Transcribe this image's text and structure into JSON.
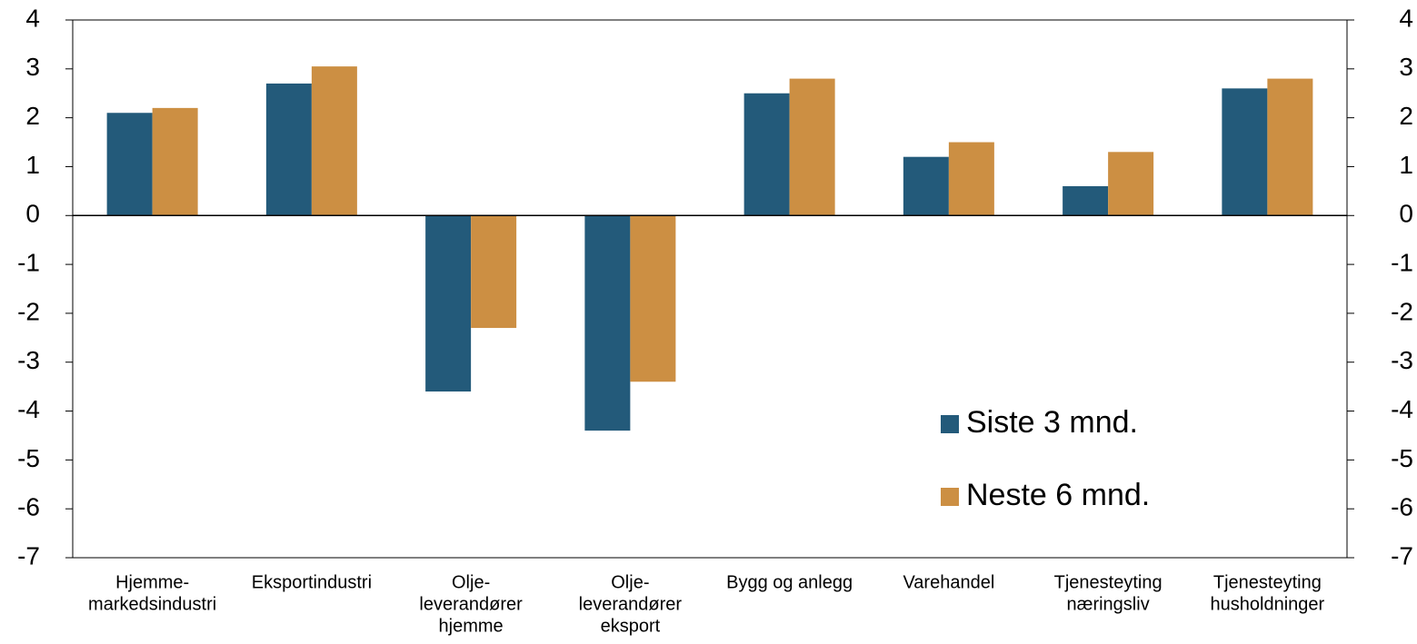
{
  "chart_data": {
    "type": "bar",
    "categories": [
      [
        "Hjemme-",
        "markedsindustri"
      ],
      [
        "Eksportindustri"
      ],
      [
        "Olje-",
        "leverandører",
        "hjemme"
      ],
      [
        "Olje-",
        "leverandører",
        "eksport"
      ],
      [
        "Bygg og anlegg"
      ],
      [
        "Varehandel"
      ],
      [
        "Tjenesteyting",
        "næringsliv"
      ],
      [
        "Tjenesteyting",
        "husholdninger"
      ]
    ],
    "series": [
      {
        "name": "Siste 3 mnd.",
        "color": "#235a7a",
        "values": [
          2.1,
          2.7,
          -3.6,
          -4.4,
          2.5,
          1.2,
          0.6,
          2.6
        ]
      },
      {
        "name": "Neste 6 mnd.",
        "color": "#cc8f43",
        "values": [
          2.2,
          3.05,
          -2.3,
          -3.4,
          2.8,
          1.5,
          1.3,
          2.8
        ]
      }
    ],
    "ylim": [
      -7,
      4
    ],
    "yticks": [
      -7,
      -6,
      -5,
      -4,
      -3,
      -2,
      -1,
      0,
      1,
      2,
      3,
      4
    ],
    "y2lim": [
      -7,
      4
    ],
    "y2ticks": [
      -7,
      -6,
      -5,
      -4,
      -3,
      -2,
      -1,
      0,
      1,
      2,
      3,
      4
    ],
    "grid": false,
    "legend": "lower right"
  }
}
